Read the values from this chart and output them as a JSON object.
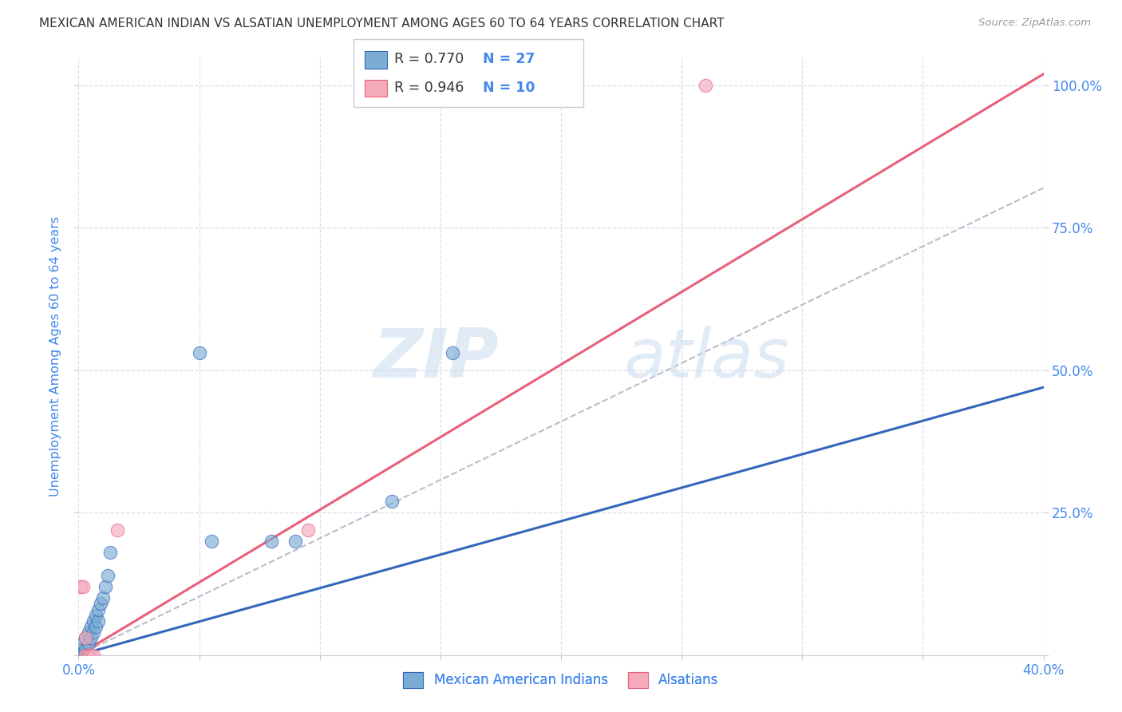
{
  "title": "MEXICAN AMERICAN INDIAN VS ALSATIAN UNEMPLOYMENT AMONG AGES 60 TO 64 YEARS CORRELATION CHART",
  "source": "Source: ZipAtlas.com",
  "ylabel": "Unemployment Among Ages 60 to 64 years",
  "xlim": [
    0.0,
    0.4
  ],
  "ylim": [
    0.0,
    1.05
  ],
  "x_ticks": [
    0.0,
    0.05,
    0.1,
    0.15,
    0.2,
    0.25,
    0.3,
    0.35,
    0.4
  ],
  "x_tick_labels": [
    "0.0%",
    "",
    "",
    "",
    "",
    "",
    "",
    "",
    "40.0%"
  ],
  "y_ticks": [
    0.0,
    0.25,
    0.5,
    0.75,
    1.0
  ],
  "y_tick_labels": [
    "",
    "25.0%",
    "50.0%",
    "75.0%",
    "100.0%"
  ],
  "blue_scatter_x": [
    0.001,
    0.001,
    0.002,
    0.002,
    0.003,
    0.003,
    0.004,
    0.004,
    0.005,
    0.005,
    0.006,
    0.006,
    0.007,
    0.007,
    0.008,
    0.008,
    0.009,
    0.01,
    0.011,
    0.012,
    0.013,
    0.05,
    0.055,
    0.08,
    0.09,
    0.13,
    0.155
  ],
  "blue_scatter_y": [
    0.0,
    0.01,
    0.0,
    0.02,
    0.01,
    0.03,
    0.02,
    0.04,
    0.03,
    0.05,
    0.04,
    0.06,
    0.05,
    0.07,
    0.06,
    0.08,
    0.09,
    0.1,
    0.12,
    0.14,
    0.18,
    0.53,
    0.2,
    0.2,
    0.2,
    0.27,
    0.53
  ],
  "pink_scatter_x": [
    0.001,
    0.002,
    0.003,
    0.003,
    0.004,
    0.005,
    0.006,
    0.016,
    0.095,
    0.26
  ],
  "pink_scatter_y": [
    0.12,
    0.12,
    0.0,
    0.03,
    0.0,
    0.0,
    0.0,
    0.22,
    0.22,
    1.0
  ],
  "blue_line_x": [
    0.0,
    0.4
  ],
  "blue_line_y": [
    0.0,
    0.47
  ],
  "pink_line_x": [
    0.0,
    0.4
  ],
  "pink_line_y": [
    0.0,
    1.02
  ],
  "dashed_line_x": [
    0.0,
    0.4
  ],
  "dashed_line_y": [
    0.0,
    0.82
  ],
  "blue_r": "0.770",
  "blue_n": "27",
  "pink_r": "0.946",
  "pink_n": "10",
  "blue_scatter_color": "#7BADD4",
  "pink_scatter_color": "#F5AABC",
  "blue_line_color": "#3366BB",
  "pink_line_color": "#E8607A",
  "dashed_line_color": "#BBBBCC",
  "axis_color": "#4488EE",
  "title_color": "#333333",
  "legend_label_blue": "Mexican American Indians",
  "legend_label_pink": "Alsatians",
  "watermark_zip": "ZIP",
  "watermark_atlas": "atlas",
  "background_color": "#FFFFFF",
  "grid_color": "#DDDDEE"
}
